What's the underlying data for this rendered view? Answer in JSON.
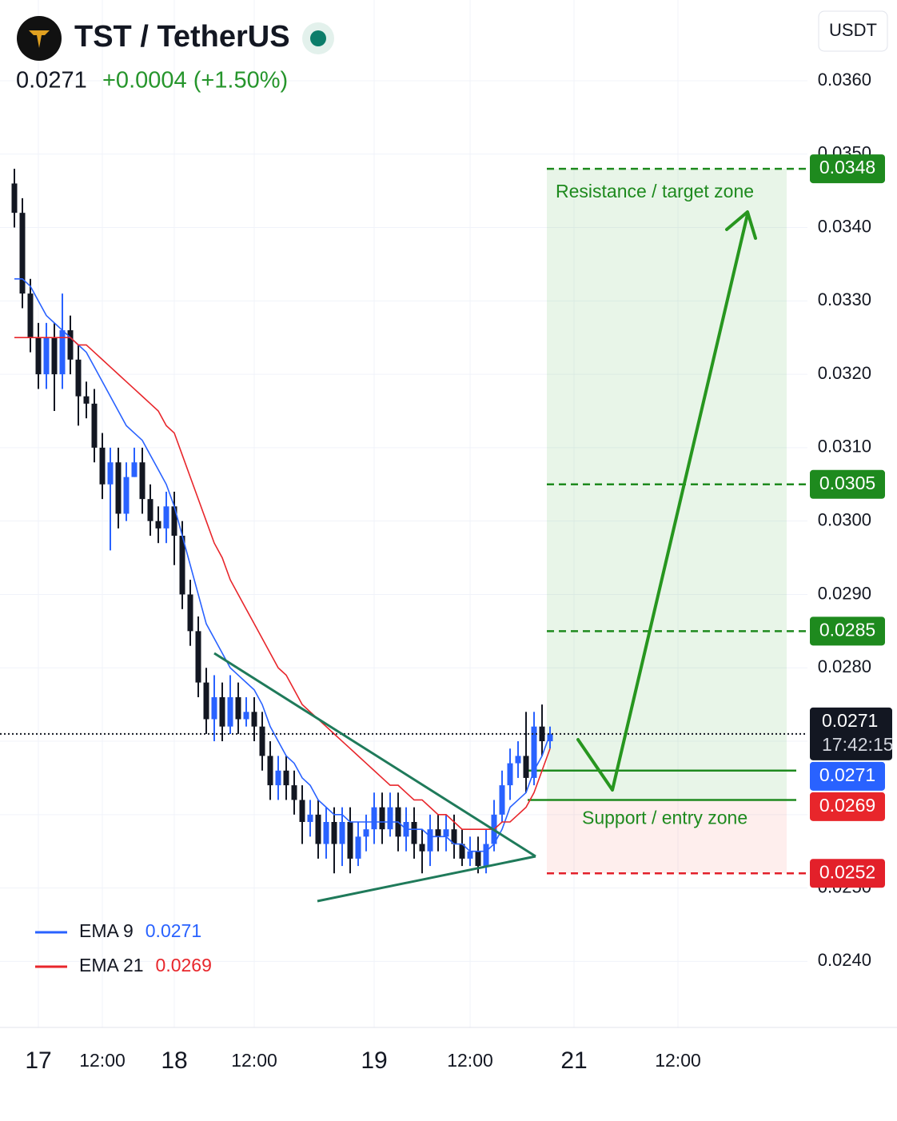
{
  "chart_data": {
    "type": "candlestick",
    "title": "TST / TetherUS",
    "subtitle": "+0.0004 (+1.50%)",
    "currency": "USDT",
    "countdown": "17:42:15",
    "grid": true,
    "ylim": [
      0.0231,
      0.0371
    ],
    "yticks": [
      {
        "value": 0.024,
        "label": "0.0240"
      },
      {
        "value": 0.025,
        "label": "0.0250"
      },
      {
        "value": 0.026,
        "label": "0.0260"
      },
      {
        "value": 0.027,
        "label": "0.0270"
      },
      {
        "value": 0.028,
        "label": "0.0280"
      },
      {
        "value": 0.029,
        "label": "0.0290"
      },
      {
        "value": 0.03,
        "label": "0.0300"
      },
      {
        "value": 0.031,
        "label": "0.0310"
      },
      {
        "value": 0.032,
        "label": "0.0320"
      },
      {
        "value": 0.033,
        "label": "0.0330"
      },
      {
        "value": 0.034,
        "label": "0.0340"
      },
      {
        "value": 0.035,
        "label": "0.0350"
      },
      {
        "value": 0.036,
        "label": "0.0360"
      }
    ],
    "categories": [
      null,
      null,
      null,
      "17",
      null,
      null,
      null,
      null,
      null,
      null,
      null,
      "12:00",
      null,
      null,
      null,
      null,
      null,
      null,
      null,
      null,
      "18",
      null,
      null,
      null,
      null,
      null,
      null,
      null,
      null,
      null,
      "12:00",
      null,
      null,
      null,
      null,
      null,
      null,
      null,
      null,
      null,
      null,
      null,
      null,
      null,
      null,
      "19",
      null,
      null,
      null,
      null,
      null,
      null,
      null,
      null,
      null,
      null,
      null,
      "12:00",
      null,
      null,
      null,
      null,
      null,
      null,
      null,
      null,
      null,
      null,
      null,
      null,
      "21",
      null,
      null,
      null,
      null,
      null,
      null,
      null,
      null,
      null,
      null,
      null,
      null,
      "12:00"
    ],
    "candles": {
      "up_color": "#2962ff",
      "down_color": "#131722",
      "open": [
        0.0346,
        0.0342,
        0.0331,
        0.0325,
        0.032,
        0.0325,
        0.032,
        0.0326,
        0.0322,
        0.0317,
        0.0316,
        0.031,
        0.0305,
        0.0308,
        0.0301,
        0.0306,
        0.0308,
        0.0303,
        0.03,
        0.0299,
        0.0302,
        0.0298,
        0.029,
        0.0285,
        0.0278,
        0.0273,
        0.0276,
        0.0272,
        0.0276,
        0.0273,
        0.0274,
        0.0272,
        0.0268,
        0.0264,
        0.0266,
        0.0264,
        0.0262,
        0.0259,
        0.026,
        0.0256,
        0.0259,
        0.0256,
        0.0259,
        0.0254,
        0.0257,
        0.0258,
        0.0261,
        0.0258,
        0.0261,
        0.0257,
        0.0259,
        0.0256,
        0.0255,
        0.0258,
        0.0257,
        0.0258,
        0.0256,
        0.0254,
        0.0255,
        0.0253,
        0.0256,
        0.026,
        0.0264,
        0.0267,
        0.0268,
        0.0265,
        0.0272,
        0.027,
        null,
        null,
        null,
        null,
        null,
        null,
        null,
        null,
        null,
        null,
        null,
        null,
        null,
        null,
        null,
        null
      ],
      "high": [
        0.0348,
        0.0344,
        0.0333,
        0.0327,
        0.0327,
        0.0327,
        0.0331,
        0.0328,
        0.0324,
        0.0319,
        0.0318,
        0.0312,
        0.031,
        0.031,
        0.0308,
        0.031,
        0.031,
        0.0305,
        0.0302,
        0.0304,
        0.0304,
        0.03,
        0.0292,
        0.0287,
        0.028,
        0.0279,
        0.0278,
        0.0279,
        0.0278,
        0.0276,
        0.0276,
        0.0274,
        0.027,
        0.0268,
        0.0268,
        0.0266,
        0.0264,
        0.0262,
        0.0262,
        0.0261,
        0.0261,
        0.0261,
        0.0261,
        0.0259,
        0.026,
        0.0263,
        0.0263,
        0.0263,
        0.0263,
        0.0261,
        0.0261,
        0.0258,
        0.026,
        0.026,
        0.026,
        0.026,
        0.0258,
        0.0257,
        0.0257,
        0.0258,
        0.0262,
        0.0266,
        0.0269,
        0.027,
        0.0274,
        0.0274,
        0.0275,
        0.0272,
        null,
        null,
        null,
        null,
        null,
        null,
        null,
        null,
        null,
        null,
        null,
        null,
        null,
        null,
        null,
        null
      ],
      "low": [
        0.034,
        0.0329,
        0.0323,
        0.0318,
        0.0318,
        0.0315,
        0.0318,
        0.032,
        0.0313,
        0.0314,
        0.0308,
        0.0303,
        0.0296,
        0.0299,
        0.03,
        0.0306,
        0.0301,
        0.0298,
        0.0297,
        0.0297,
        0.0294,
        0.0288,
        0.0283,
        0.0276,
        0.0271,
        0.027,
        0.027,
        0.0271,
        0.0271,
        0.0272,
        0.027,
        0.0266,
        0.0262,
        0.0262,
        0.0262,
        0.026,
        0.0256,
        0.0257,
        0.0254,
        0.0254,
        0.0252,
        0.0253,
        0.0252,
        0.0253,
        0.0255,
        0.0256,
        0.0256,
        0.0257,
        0.0255,
        0.0255,
        0.0254,
        0.0252,
        0.0253,
        0.0255,
        0.0255,
        0.0254,
        0.0253,
        0.0253,
        0.0252,
        0.0252,
        0.0255,
        0.0259,
        0.0262,
        0.0265,
        0.0263,
        0.0264,
        0.0268,
        0.0269,
        null,
        null,
        null,
        null,
        null,
        null,
        null,
        null,
        null,
        null,
        null,
        null,
        null,
        null,
        null,
        null
      ],
      "close": [
        0.0342,
        0.0331,
        0.0325,
        0.032,
        0.0325,
        0.032,
        0.0326,
        0.0322,
        0.0317,
        0.0316,
        0.031,
        0.0305,
        0.0308,
        0.0301,
        0.0306,
        0.0308,
        0.0303,
        0.03,
        0.0299,
        0.0302,
        0.0298,
        0.029,
        0.0285,
        0.0278,
        0.0273,
        0.0276,
        0.0272,
        0.0276,
        0.0273,
        0.0274,
        0.0272,
        0.0268,
        0.0264,
        0.0266,
        0.0264,
        0.0262,
        0.0259,
        0.026,
        0.0256,
        0.0259,
        0.0256,
        0.0259,
        0.0254,
        0.0257,
        0.0258,
        0.0261,
        0.0258,
        0.0261,
        0.0257,
        0.0259,
        0.0256,
        0.0255,
        0.0258,
        0.0257,
        0.0258,
        0.0256,
        0.0254,
        0.0255,
        0.0253,
        0.0256,
        0.026,
        0.0264,
        0.0267,
        0.0268,
        0.0265,
        0.0272,
        0.027,
        0.0271,
        null,
        null,
        null,
        null,
        null,
        null,
        null,
        null,
        null,
        null,
        null,
        null,
        null,
        null,
        null,
        null
      ]
    },
    "series": [
      {
        "name": "EMA 9",
        "color": "#2962ff",
        "values": [
          0.0333,
          0.0333,
          0.0332,
          0.033,
          0.0328,
          0.0327,
          0.0326,
          0.0325,
          0.0324,
          0.0323,
          0.0321,
          0.0319,
          0.0317,
          0.0315,
          0.0313,
          0.0312,
          0.0311,
          0.0309,
          0.0307,
          0.0305,
          0.0302,
          0.0298,
          0.0294,
          0.029,
          0.0286,
          0.0284,
          0.0282,
          0.028,
          0.0279,
          0.0278,
          0.0277,
          0.0275,
          0.0272,
          0.027,
          0.0268,
          0.0267,
          0.0265,
          0.0264,
          0.0262,
          0.0261,
          0.026,
          0.026,
          0.0259,
          0.0259,
          0.0259,
          0.0259,
          0.0259,
          0.0259,
          0.0259,
          0.0258,
          0.0258,
          0.0258,
          0.0257,
          0.0257,
          0.0257,
          0.0256,
          0.0256,
          0.0255,
          0.0255,
          0.0255,
          0.0256,
          0.0258,
          0.0261,
          0.0262,
          0.0263,
          0.0266,
          0.0268,
          0.0271,
          null,
          null,
          null,
          null,
          null,
          null,
          null,
          null,
          null,
          null,
          null,
          null,
          null,
          null,
          null,
          null
        ]
      },
      {
        "name": "EMA 21",
        "color": "#e8262b",
        "values": [
          0.0325,
          0.0325,
          0.0325,
          0.0325,
          0.0325,
          0.0325,
          0.0325,
          0.0325,
          0.0324,
          0.0324,
          0.0323,
          0.0322,
          0.0321,
          0.032,
          0.0319,
          0.0318,
          0.0317,
          0.0316,
          0.0315,
          0.0313,
          0.0312,
          0.0309,
          0.0306,
          0.0303,
          0.03,
          0.0297,
          0.0295,
          0.0292,
          0.029,
          0.0288,
          0.0286,
          0.0284,
          0.0282,
          0.028,
          0.0279,
          0.0277,
          0.0275,
          0.0274,
          0.0273,
          0.0272,
          0.0271,
          0.027,
          0.0269,
          0.0268,
          0.0267,
          0.0266,
          0.0265,
          0.0264,
          0.0264,
          0.0263,
          0.0262,
          0.0262,
          0.0261,
          0.026,
          0.026,
          0.0259,
          0.0258,
          0.0258,
          0.0258,
          0.0258,
          0.0258,
          0.0259,
          0.0259,
          0.026,
          0.0261,
          0.0263,
          0.0266,
          0.0269,
          null,
          null,
          null,
          null,
          null,
          null,
          null,
          null,
          null,
          null,
          null,
          null,
          null,
          null,
          null,
          null
        ]
      }
    ],
    "levels": [
      {
        "value": 0.0348,
        "color": "#1e8a1e"
      },
      {
        "value": 0.0305,
        "color": "#1e8a1e"
      },
      {
        "value": 0.0285,
        "color": "#1e8a1e"
      },
      {
        "value": 0.0252,
        "color": "#e3202a"
      }
    ],
    "entry_lines": [
      0.0266,
      0.0262
    ],
    "zones": [
      {
        "label": "Resistance / target zone",
        "from": 0.0262,
        "to": 0.0348,
        "color": "#4caf50"
      },
      {
        "label": "Support / entry zone",
        "from": 0.0252,
        "to": 0.0262,
        "color": "#f44336"
      }
    ]
  }
}
